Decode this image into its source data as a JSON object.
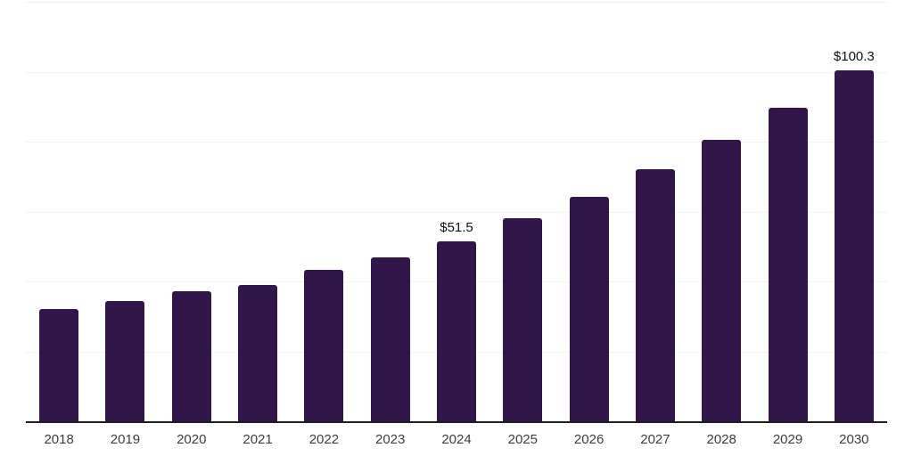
{
  "chart_data": {
    "type": "bar",
    "categories": [
      "2018",
      "2019",
      "2020",
      "2021",
      "2022",
      "2023",
      "2024",
      "2025",
      "2026",
      "2027",
      "2028",
      "2029",
      "2030"
    ],
    "values": [
      32.2,
      34.3,
      37.1,
      38.9,
      43.2,
      47.0,
      51.5,
      58.2,
      64.3,
      72.0,
      80.4,
      89.7,
      100.3
    ],
    "data_labels": [
      {
        "category": "2024",
        "text": "$51.5"
      },
      {
        "category": "2030",
        "text": "$100.3"
      }
    ],
    "title": "",
    "xlabel": "",
    "ylabel": "",
    "ylim": [
      0,
      120
    ],
    "grid": true,
    "gridline_interval": 20,
    "legend": "none",
    "bar_color": "#31164a",
    "gridline_color": "#f2f2f2",
    "axis_line_color": "#1f1f1f",
    "tick_label_color": "#3d3d3d",
    "value_label_color": "#0f0f0f"
  }
}
